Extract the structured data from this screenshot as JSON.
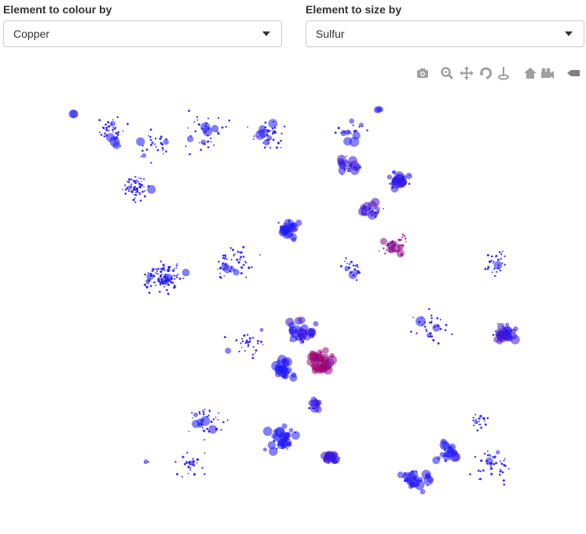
{
  "controls": {
    "colour": {
      "label": "Element to colour by",
      "value": "Copper"
    },
    "size": {
      "label": "Element to size by",
      "value": "Sulfur"
    }
  },
  "modebar": {
    "icons": [
      "camera-icon",
      "zoom-icon",
      "pan-icon",
      "orbit-rotation-icon",
      "turntable-rotation-icon",
      "reset-camera-icon",
      "default-camera-icon",
      "plotly-logo-icon"
    ],
    "icon_color": "#a0a0a0"
  },
  "chart_data": {
    "type": "scatter",
    "title": "",
    "xlabel": "",
    "ylabel": "",
    "grid": false,
    "legend": "none",
    "color_scale": [
      "#1a1aff",
      "#cc0044"
    ],
    "clusters": [
      {
        "x": 0.05,
        "y": 0.92,
        "n": 2,
        "spread": 0.005,
        "c": 0.0,
        "s": 0.9
      },
      {
        "x": 0.12,
        "y": 0.88,
        "n": 40,
        "spread": 0.04,
        "c": 0.0,
        "s": 0.1
      },
      {
        "x": 0.2,
        "y": 0.85,
        "n": 30,
        "spread": 0.05,
        "c": 0.0,
        "s": 0.1
      },
      {
        "x": 0.3,
        "y": 0.88,
        "n": 40,
        "spread": 0.06,
        "c": 0.0,
        "s": 0.1
      },
      {
        "x": 0.42,
        "y": 0.87,
        "n": 40,
        "spread": 0.05,
        "c": 0.0,
        "s": 0.15
      },
      {
        "x": 0.58,
        "y": 0.88,
        "n": 20,
        "spread": 0.04,
        "c": 0.0,
        "s": 0.3
      },
      {
        "x": 0.63,
        "y": 0.93,
        "n": 3,
        "spread": 0.01,
        "c": 0.0,
        "s": 0.8
      },
      {
        "x": 0.57,
        "y": 0.8,
        "n": 25,
        "spread": 0.03,
        "c": 0.1,
        "s": 0.6
      },
      {
        "x": 0.67,
        "y": 0.77,
        "n": 30,
        "spread": 0.03,
        "c": 0.1,
        "s": 0.6
      },
      {
        "x": 0.62,
        "y": 0.7,
        "n": 25,
        "spread": 0.03,
        "c": 0.2,
        "s": 0.5
      },
      {
        "x": 0.66,
        "y": 0.62,
        "n": 35,
        "spread": 0.04,
        "c": 0.6,
        "s": 0.3
      },
      {
        "x": 0.17,
        "y": 0.75,
        "n": 60,
        "spread": 0.04,
        "c": 0.0,
        "s": 0.05
      },
      {
        "x": 0.22,
        "y": 0.55,
        "n": 110,
        "spread": 0.05,
        "c": 0.0,
        "s": 0.05
      },
      {
        "x": 0.35,
        "y": 0.58,
        "n": 50,
        "spread": 0.06,
        "c": 0.0,
        "s": 0.15
      },
      {
        "x": 0.46,
        "y": 0.66,
        "n": 30,
        "spread": 0.03,
        "c": 0.0,
        "s": 0.6
      },
      {
        "x": 0.58,
        "y": 0.57,
        "n": 25,
        "spread": 0.03,
        "c": 0.0,
        "s": 0.2
      },
      {
        "x": 0.48,
        "y": 0.42,
        "n": 40,
        "spread": 0.04,
        "c": 0.1,
        "s": 0.7
      },
      {
        "x": 0.52,
        "y": 0.36,
        "n": 50,
        "spread": 0.035,
        "c": 0.7,
        "s": 0.8
      },
      {
        "x": 0.45,
        "y": 0.34,
        "n": 25,
        "spread": 0.03,
        "c": 0.0,
        "s": 0.8
      },
      {
        "x": 0.51,
        "y": 0.26,
        "n": 15,
        "spread": 0.02,
        "c": 0.2,
        "s": 0.6
      },
      {
        "x": 0.38,
        "y": 0.4,
        "n": 30,
        "spread": 0.05,
        "c": 0.0,
        "s": 0.05
      },
      {
        "x": 0.73,
        "y": 0.44,
        "n": 35,
        "spread": 0.05,
        "c": 0.0,
        "s": 0.1
      },
      {
        "x": 0.87,
        "y": 0.42,
        "n": 50,
        "spread": 0.03,
        "c": 0.2,
        "s": 0.6
      },
      {
        "x": 0.85,
        "y": 0.58,
        "n": 30,
        "spread": 0.04,
        "c": 0.0,
        "s": 0.05
      },
      {
        "x": 0.3,
        "y": 0.22,
        "n": 40,
        "spread": 0.05,
        "c": 0.0,
        "s": 0.1
      },
      {
        "x": 0.45,
        "y": 0.18,
        "n": 40,
        "spread": 0.04,
        "c": 0.0,
        "s": 0.6
      },
      {
        "x": 0.54,
        "y": 0.14,
        "n": 25,
        "spread": 0.02,
        "c": 0.2,
        "s": 0.7
      },
      {
        "x": 0.27,
        "y": 0.12,
        "n": 30,
        "spread": 0.04,
        "c": 0.0,
        "s": 0.05
      },
      {
        "x": 0.19,
        "y": 0.13,
        "n": 3,
        "spread": 0.01,
        "c": 0.0,
        "s": 0.6
      },
      {
        "x": 0.7,
        "y": 0.09,
        "n": 35,
        "spread": 0.04,
        "c": 0.0,
        "s": 0.7
      },
      {
        "x": 0.76,
        "y": 0.15,
        "n": 25,
        "spread": 0.03,
        "c": 0.0,
        "s": 0.6
      },
      {
        "x": 0.85,
        "y": 0.12,
        "n": 45,
        "spread": 0.05,
        "c": 0.0,
        "s": 0.05
      },
      {
        "x": 0.82,
        "y": 0.22,
        "n": 20,
        "spread": 0.03,
        "c": 0.0,
        "s": 0.1
      }
    ]
  }
}
